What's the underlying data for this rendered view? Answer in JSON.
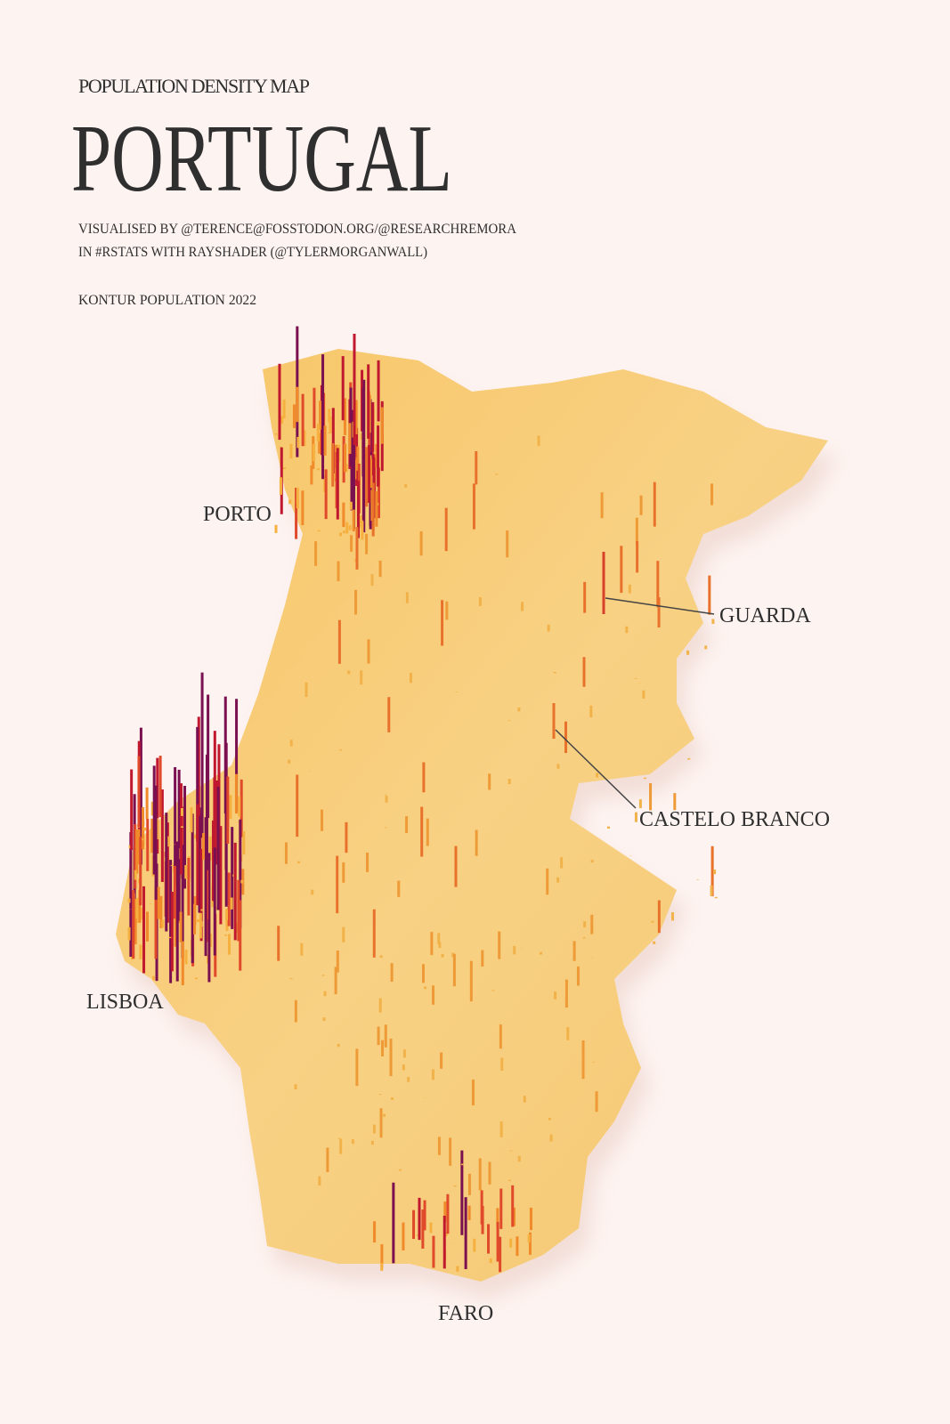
{
  "header": {
    "subtitle": "POPULATION DENSITY MAP",
    "title": "PORTUGAL",
    "credits": [
      "VISUALISED BY @TERENCE@FOSSTODON.ORG/@RESEARCHREMORA",
      "IN #RSTATS WITH RAYSHADER (@TYLERMORGANWALL)"
    ],
    "source": "KONTUR POPULATION 2022"
  },
  "labels": [
    {
      "name": "PORTO"
    },
    {
      "name": "GUARDA"
    },
    {
      "name": "CASTELO BRANCO"
    },
    {
      "name": "LISBOA"
    },
    {
      "name": "FARO"
    }
  ]
}
